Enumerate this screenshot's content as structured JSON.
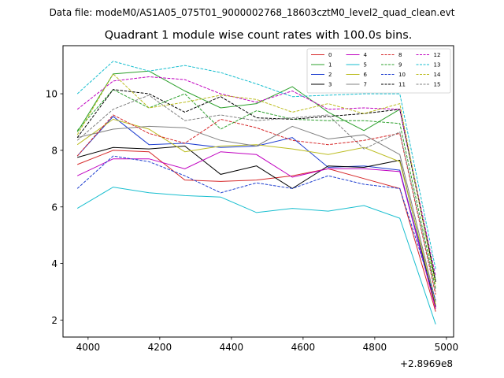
{
  "chart_data": {
    "type": "line",
    "suptitle": "Data file: modeM0/AS1A05_075T01_9000002768_18603cztM0_level2_quad_clean.evt",
    "title": "Quadrant 1 module wise count rates with 100.0s bins.",
    "xlabel": "",
    "ylabel": "",
    "x_offset_label": "+2.8969e8",
    "xlim": [
      3930,
      5020
    ],
    "ylim": [
      1.4,
      11.7
    ],
    "x_ticks": [
      4000,
      4200,
      4400,
      4600,
      4800,
      5000
    ],
    "y_ticks": [
      2,
      4,
      6,
      8,
      10
    ],
    "x": [
      3970,
      4070,
      4170,
      4270,
      4370,
      4470,
      4570,
      4670,
      4770,
      4870,
      4970
    ],
    "legend_position": "top-right",
    "series": [
      {
        "name": "0",
        "color": "#d62728",
        "dash": "solid",
        "values": [
          7.5,
          8.0,
          7.95,
          6.95,
          6.9,
          6.95,
          7.1,
          7.35,
          7.0,
          6.65,
          2.3
        ]
      },
      {
        "name": "1",
        "color": "#2ca02c",
        "dash": "solid",
        "values": [
          8.65,
          10.7,
          10.8,
          10.1,
          9.5,
          9.65,
          10.25,
          9.35,
          8.7,
          9.45,
          3.4
        ]
      },
      {
        "name": "2",
        "color": "#1f3fd0",
        "dash": "solid",
        "values": [
          7.8,
          9.2,
          8.2,
          8.25,
          8.1,
          8.15,
          8.45,
          7.4,
          7.45,
          7.3,
          2.5
        ]
      },
      {
        "name": "3",
        "color": "#000000",
        "dash": "solid",
        "values": [
          7.75,
          8.1,
          8.05,
          8.15,
          7.15,
          7.45,
          6.65,
          7.45,
          7.4,
          7.65,
          2.45
        ]
      },
      {
        "name": "4",
        "color": "#c000c0",
        "dash": "solid",
        "values": [
          7.1,
          7.7,
          7.7,
          7.35,
          7.95,
          7.85,
          7.05,
          7.35,
          7.35,
          7.25,
          2.4
        ]
      },
      {
        "name": "5",
        "color": "#17becf",
        "dash": "solid",
        "values": [
          5.95,
          6.7,
          6.5,
          6.4,
          6.35,
          5.8,
          5.95,
          5.85,
          6.05,
          5.6,
          1.85
        ]
      },
      {
        "name": "6",
        "color": "#bcbd22",
        "dash": "solid",
        "values": [
          8.2,
          9.1,
          8.75,
          7.95,
          8.15,
          8.2,
          8.05,
          7.85,
          8.1,
          7.6,
          2.55
        ]
      },
      {
        "name": "7",
        "color": "#808080",
        "dash": "solid",
        "values": [
          8.45,
          8.75,
          8.85,
          8.8,
          8.35,
          8.15,
          8.85,
          8.4,
          8.55,
          7.85,
          2.65
        ]
      },
      {
        "name": "8",
        "color": "#d62728",
        "dash": "dashed",
        "values": [
          7.8,
          9.25,
          8.6,
          8.25,
          9.1,
          8.8,
          8.35,
          8.2,
          8.35,
          8.6,
          2.9
        ]
      },
      {
        "name": "9",
        "color": "#2ca02c",
        "dash": "dashed",
        "values": [
          8.7,
          10.15,
          9.5,
          10.0,
          8.75,
          9.4,
          9.1,
          9.05,
          9.05,
          8.95,
          3.1
        ]
      },
      {
        "name": "10",
        "color": "#1f3fd0",
        "dash": "dashed",
        "values": [
          6.65,
          7.8,
          7.6,
          7.1,
          6.5,
          6.85,
          6.65,
          7.1,
          6.8,
          6.65,
          2.7
        ]
      },
      {
        "name": "11",
        "color": "#000000",
        "dash": "dashed",
        "values": [
          8.45,
          10.15,
          10.0,
          9.35,
          9.9,
          9.15,
          9.1,
          9.2,
          9.3,
          9.45,
          3.35
        ]
      },
      {
        "name": "12",
        "color": "#c000c0",
        "dash": "dashed",
        "values": [
          9.45,
          10.45,
          10.6,
          10.5,
          10.0,
          9.7,
          10.1,
          9.45,
          9.5,
          9.45,
          3.55
        ]
      },
      {
        "name": "13",
        "color": "#17becf",
        "dash": "dashed",
        "values": [
          10.0,
          11.15,
          10.8,
          11.0,
          10.75,
          10.35,
          9.9,
          9.95,
          10.0,
          10.0,
          3.8
        ]
      },
      {
        "name": "14",
        "color": "#bcbd22",
        "dash": "dashed",
        "values": [
          8.55,
          10.7,
          9.5,
          9.7,
          9.95,
          9.8,
          9.35,
          9.65,
          9.3,
          9.65,
          3.2
        ]
      },
      {
        "name": "15",
        "color": "#808080",
        "dash": "dashed",
        "values": [
          8.35,
          9.45,
          9.95,
          9.05,
          9.25,
          9.05,
          9.15,
          9.25,
          8.05,
          8.65,
          3.0
        ]
      }
    ]
  }
}
